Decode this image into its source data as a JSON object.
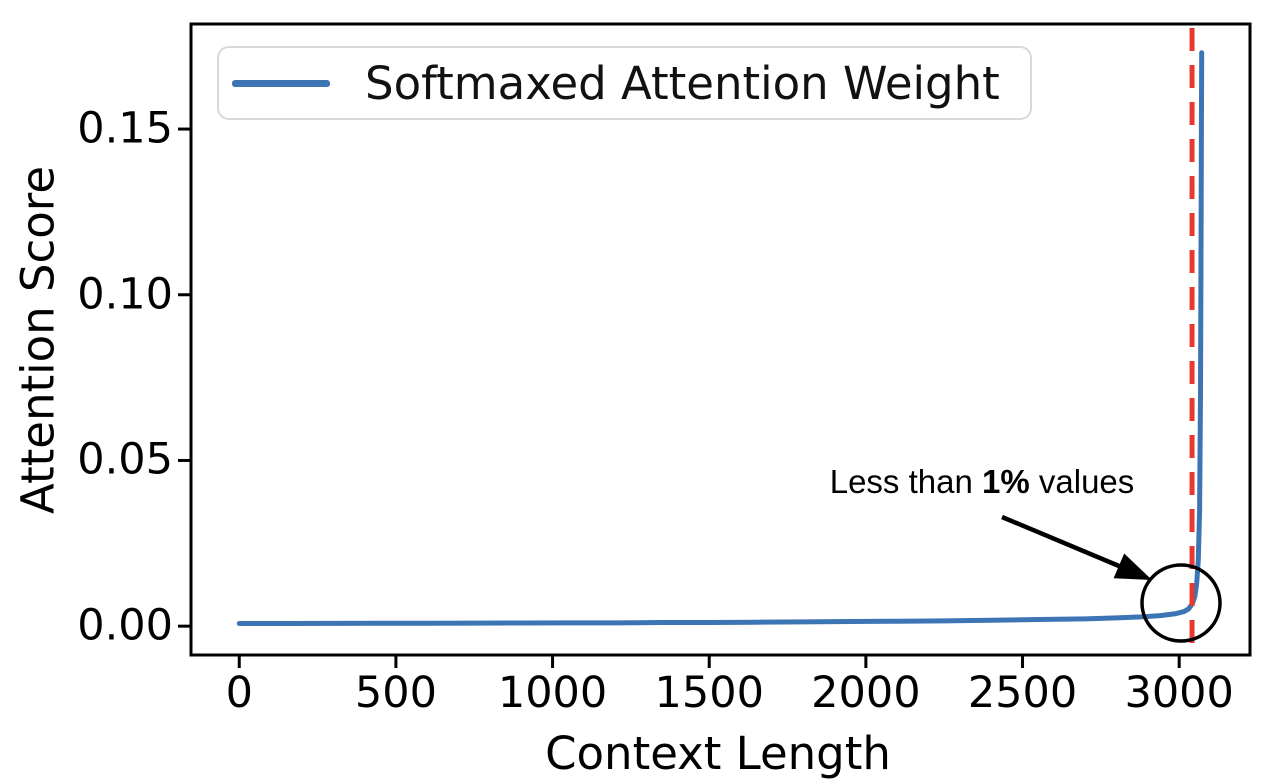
{
  "colors": {
    "line_blue": "#3d74b4",
    "dashed_red": "#e8392f",
    "spine_black": "#000000",
    "legend_border": "#d9d9d9",
    "annotation_black": "#000000",
    "background": "#ffffff"
  },
  "legend": {
    "label": "Softmaxed Attention Weight",
    "position": "upper left"
  },
  "annotation": {
    "prefix": "Less than ",
    "bold": "1%",
    "suffix": " values"
  },
  "chart_data": {
    "type": "line",
    "title": "",
    "xlabel": "Context Length",
    "ylabel": "Attention Score",
    "xlim": [
      -154,
      3226
    ],
    "ylim": [
      -0.0087,
      0.1817
    ],
    "grid": false,
    "legend_position": "upper left",
    "xticks": {
      "values": [
        0,
        500,
        1000,
        1500,
        2000,
        2500,
        3000
      ],
      "labels": [
        "0",
        "500",
        "1000",
        "1500",
        "2000",
        "2500",
        "3000"
      ]
    },
    "yticks": {
      "values": [
        0.0,
        0.05,
        0.1,
        0.15
      ],
      "labels": [
        "0.00",
        "0.05",
        "0.10",
        "0.15"
      ]
    },
    "series": [
      {
        "name": "Softmaxed Attention Weight",
        "color": "#3d74b4",
        "x": [
          0,
          150,
          300,
          450,
          600,
          750,
          900,
          1050,
          1200,
          1350,
          1500,
          1650,
          1800,
          1950,
          2100,
          2250,
          2400,
          2550,
          2700,
          2800,
          2880,
          2940,
          2990,
          3015,
          3030,
          3042,
          3050,
          3056,
          3061,
          3065,
          3068,
          3070,
          3071,
          3072
        ],
        "y": [
          0.0008,
          0.00082,
          0.00085,
          0.00088,
          0.0009,
          0.00092,
          0.00095,
          0.001,
          0.001,
          0.0011,
          0.0011,
          0.0012,
          0.0013,
          0.0014,
          0.0015,
          0.0016,
          0.0018,
          0.002,
          0.0022,
          0.0025,
          0.0028,
          0.0032,
          0.0038,
          0.0044,
          0.0052,
          0.0068,
          0.009,
          0.013,
          0.02,
          0.035,
          0.07,
          0.12,
          0.15,
          0.173
        ]
      }
    ],
    "vline": {
      "x": 3041,
      "color": "#e8392f",
      "style": "dashed",
      "width": 5
    },
    "annotation": {
      "text": "Less than 1% values",
      "target_x": 3041,
      "target_y": 0.006,
      "circled": true
    }
  }
}
